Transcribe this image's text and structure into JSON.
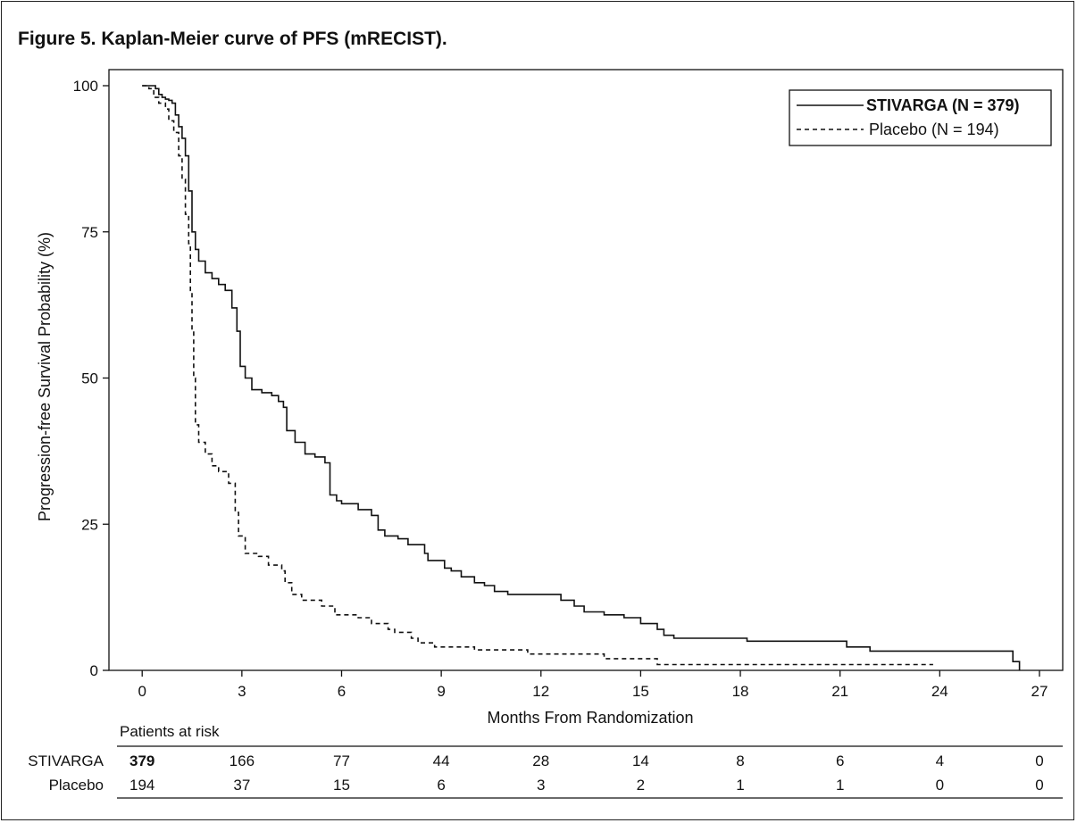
{
  "chart_data": {
    "type": "line",
    "title": "Figure 5. Kaplan-Meier curve of PFS (mRECIST).",
    "xlabel": "Months From Randomization",
    "ylabel": "Progression-free Survival Probability (%)",
    "xlim": [
      -1,
      27.7
    ],
    "ylim": [
      0,
      100
    ],
    "xticks": [
      0,
      3,
      6,
      9,
      12,
      15,
      18,
      21,
      24,
      27
    ],
    "yticks": [
      0,
      25,
      50,
      75,
      100
    ],
    "grid": false,
    "legend_position": "top-right",
    "series": [
      {
        "name": "STIVARGA (N = 379)",
        "style": "solid",
        "bold_label": true,
        "color": "#111111",
        "points": [
          [
            0,
            100
          ],
          [
            0.3,
            100
          ],
          [
            0.4,
            99.5
          ],
          [
            0.5,
            98.5
          ],
          [
            0.6,
            98
          ],
          [
            0.7,
            97.7
          ],
          [
            0.8,
            97.5
          ],
          [
            0.9,
            97
          ],
          [
            1.0,
            95
          ],
          [
            1.1,
            93
          ],
          [
            1.2,
            91
          ],
          [
            1.3,
            88
          ],
          [
            1.4,
            82
          ],
          [
            1.5,
            75
          ],
          [
            1.6,
            72
          ],
          [
            1.7,
            70
          ],
          [
            1.9,
            68
          ],
          [
            2.1,
            67
          ],
          [
            2.3,
            66
          ],
          [
            2.5,
            65
          ],
          [
            2.7,
            62
          ],
          [
            2.85,
            58
          ],
          [
            2.95,
            52
          ],
          [
            3.1,
            50
          ],
          [
            3.3,
            48
          ],
          [
            3.6,
            47.5
          ],
          [
            3.9,
            47
          ],
          [
            4.1,
            46
          ],
          [
            4.25,
            45
          ],
          [
            4.35,
            41
          ],
          [
            4.6,
            39
          ],
          [
            4.9,
            37
          ],
          [
            5.2,
            36.5
          ],
          [
            5.5,
            35.5
          ],
          [
            5.65,
            30
          ],
          [
            5.85,
            29
          ],
          [
            6.0,
            28.5
          ],
          [
            6.5,
            27.5
          ],
          [
            6.9,
            26.5
          ],
          [
            7.1,
            24
          ],
          [
            7.3,
            23
          ],
          [
            7.7,
            22.5
          ],
          [
            8.0,
            21.5
          ],
          [
            8.5,
            20
          ],
          [
            8.6,
            18.8
          ],
          [
            9.1,
            17.5
          ],
          [
            9.3,
            17
          ],
          [
            9.6,
            16
          ],
          [
            10.0,
            15
          ],
          [
            10.3,
            14.5
          ],
          [
            10.6,
            13.5
          ],
          [
            11.0,
            13
          ],
          [
            12.0,
            13
          ],
          [
            12.6,
            12
          ],
          [
            13.0,
            11
          ],
          [
            13.3,
            10
          ],
          [
            13.9,
            9.5
          ],
          [
            14.5,
            9
          ],
          [
            15.0,
            8
          ],
          [
            15.5,
            7
          ],
          [
            15.7,
            6
          ],
          [
            16.0,
            5.5
          ],
          [
            18.2,
            5
          ],
          [
            21.2,
            4
          ],
          [
            21.9,
            3.3
          ],
          [
            26.2,
            1.5
          ],
          [
            26.4,
            0
          ]
        ]
      },
      {
        "name": "Placebo (N = 194)",
        "style": "dashed",
        "bold_label": false,
        "color": "#111111",
        "points": [
          [
            0,
            100
          ],
          [
            0.2,
            99.5
          ],
          [
            0.35,
            98
          ],
          [
            0.5,
            97
          ],
          [
            0.7,
            96
          ],
          [
            0.8,
            94
          ],
          [
            0.95,
            92
          ],
          [
            1.1,
            88
          ],
          [
            1.2,
            84
          ],
          [
            1.3,
            78
          ],
          [
            1.4,
            73
          ],
          [
            1.45,
            65
          ],
          [
            1.5,
            58
          ],
          [
            1.55,
            50
          ],
          [
            1.6,
            42
          ],
          [
            1.7,
            39
          ],
          [
            1.9,
            37
          ],
          [
            2.1,
            35
          ],
          [
            2.3,
            34
          ],
          [
            2.6,
            32
          ],
          [
            2.8,
            27
          ],
          [
            2.9,
            23
          ],
          [
            3.1,
            20
          ],
          [
            3.5,
            19.5
          ],
          [
            3.8,
            18
          ],
          [
            4.2,
            17
          ],
          [
            4.3,
            15
          ],
          [
            4.5,
            13
          ],
          [
            4.8,
            12
          ],
          [
            5.4,
            11
          ],
          [
            5.8,
            9.5
          ],
          [
            6.5,
            9
          ],
          [
            6.9,
            8
          ],
          [
            7.4,
            7
          ],
          [
            7.6,
            6.5
          ],
          [
            8.1,
            5.5
          ],
          [
            8.3,
            4.7
          ],
          [
            8.8,
            4
          ],
          [
            10.0,
            3.5
          ],
          [
            11.6,
            2.8
          ],
          [
            13.9,
            2
          ],
          [
            15.5,
            1
          ],
          [
            23.8,
            1
          ]
        ]
      }
    ]
  },
  "risk_table": {
    "title": "Patients at risk",
    "rows": [
      {
        "label": "STIVARGA",
        "bold_first": true,
        "values": [
          "379",
          "166",
          "77",
          "44",
          "28",
          "14",
          "8",
          "6",
          "4",
          "0"
        ]
      },
      {
        "label": "Placebo",
        "bold_first": false,
        "values": [
          "194",
          "37",
          "15",
          "6",
          "3",
          "2",
          "1",
          "1",
          "0",
          "0"
        ]
      }
    ]
  }
}
